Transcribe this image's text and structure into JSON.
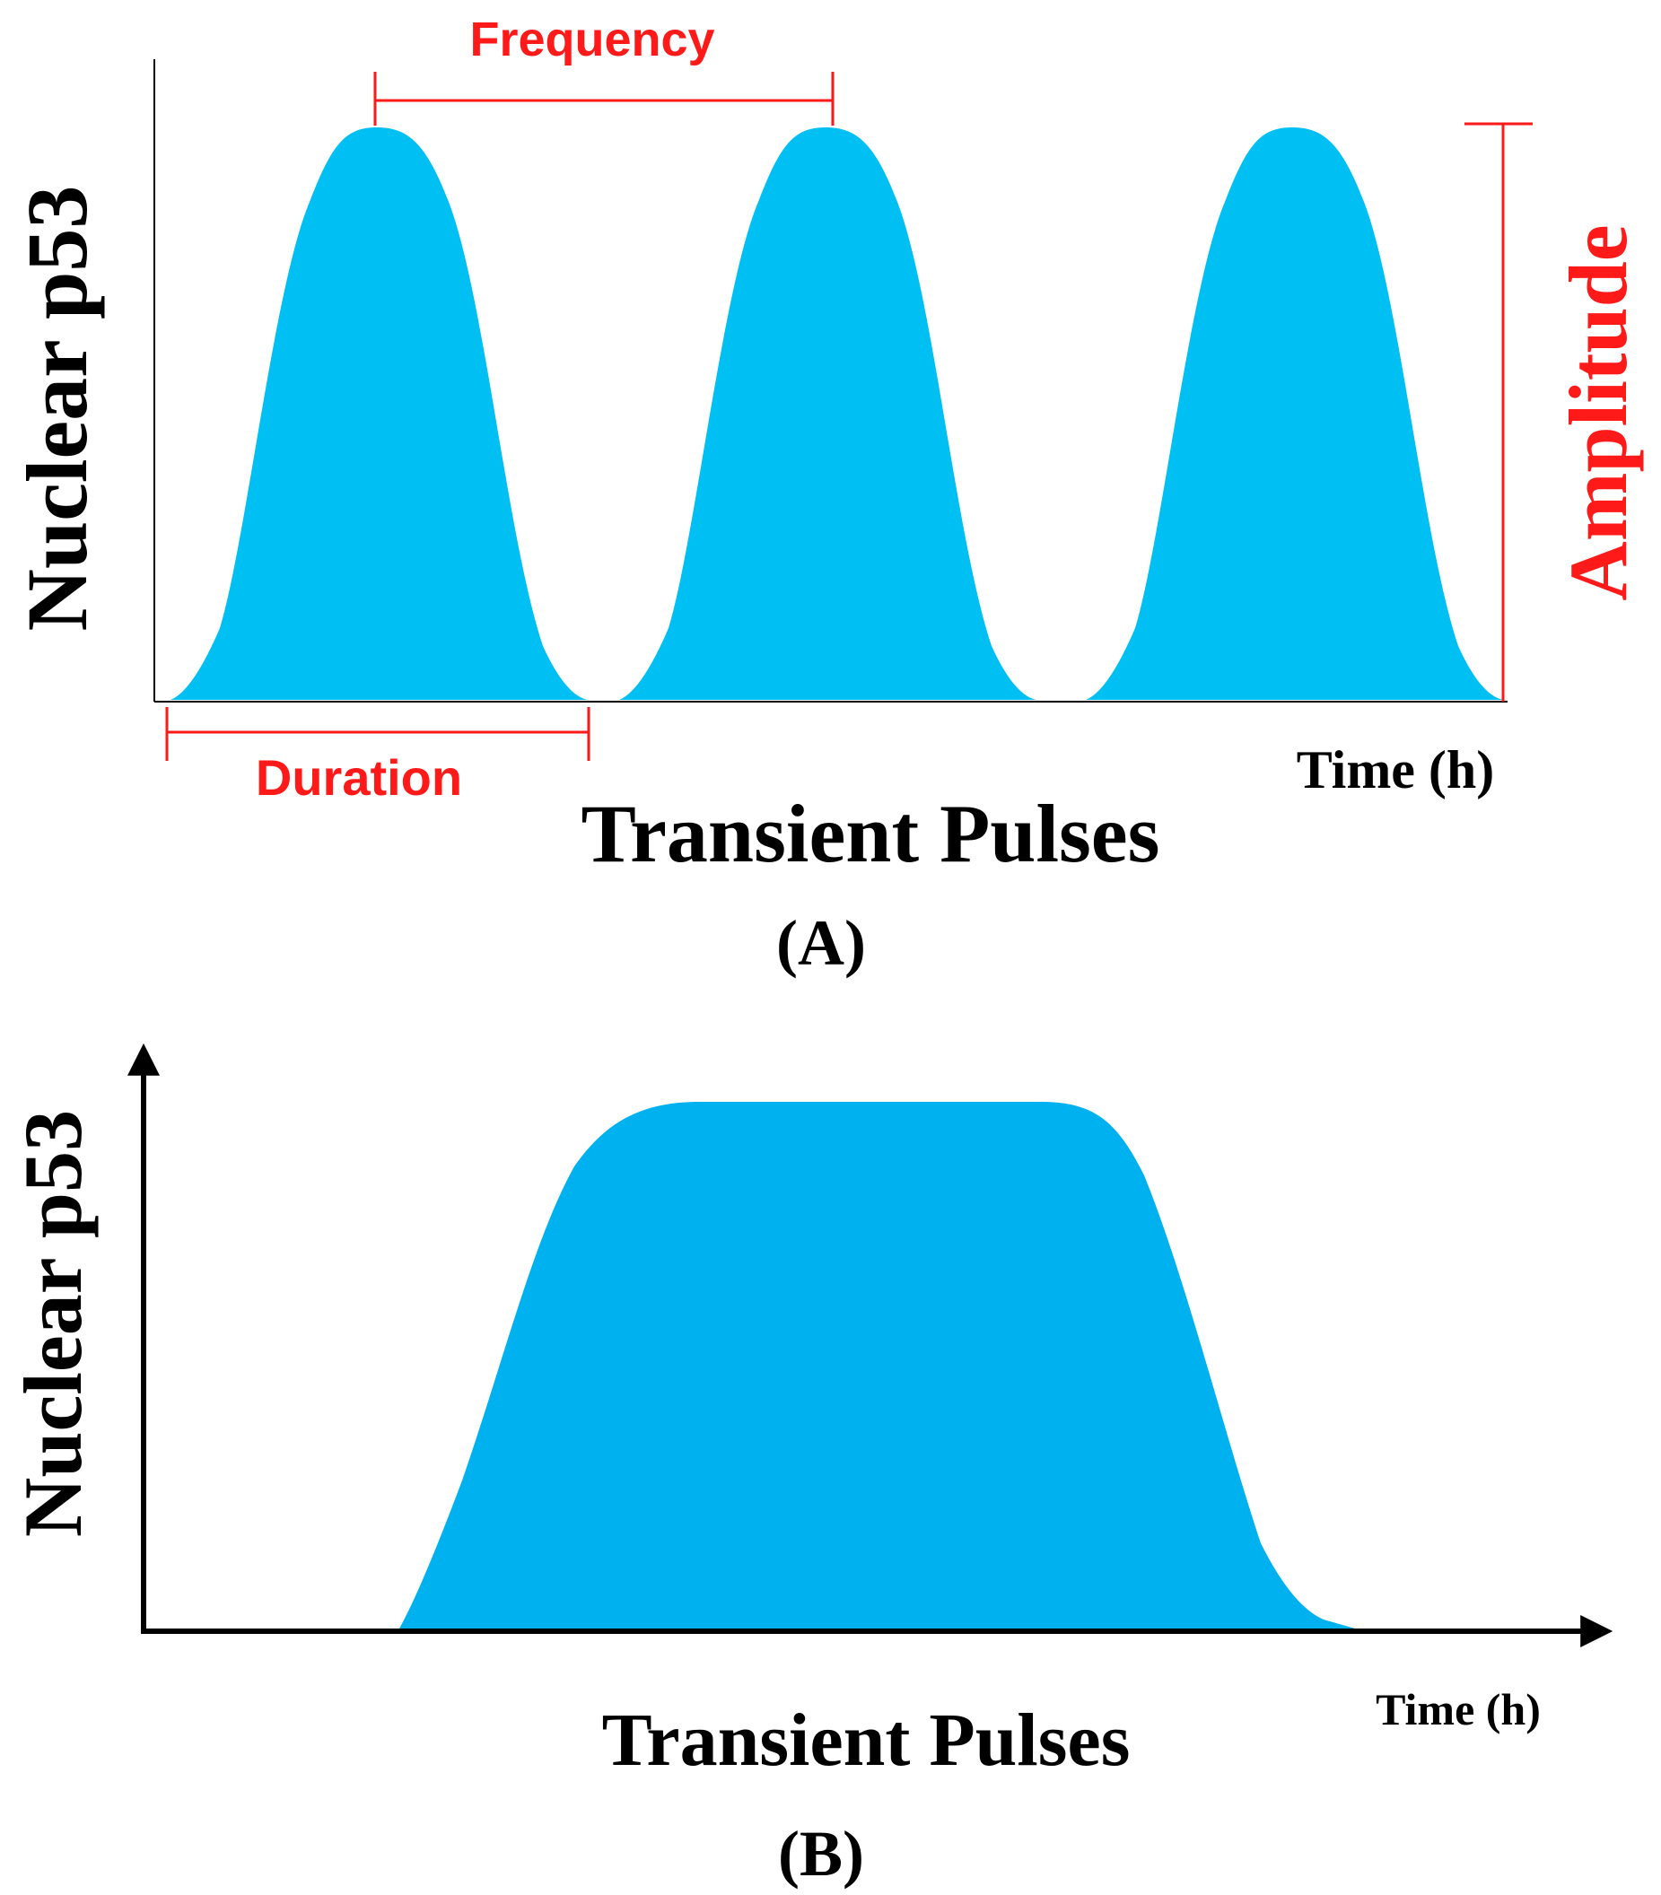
{
  "colors": {
    "pulse_fill_a": "#00BFF3",
    "pulse_fill_b": "#00B1EF",
    "annotation": "#FF1A1A",
    "axis": "#000000",
    "text": "#000000"
  },
  "panel_a": {
    "ylabel": "Nuclear p53",
    "xlabel": "Time (h)",
    "title": "Transient Pulses",
    "caption": "(A)",
    "annotations": {
      "frequency": "Frequency",
      "duration": "Duration",
      "amplitude": "Amplitude"
    }
  },
  "panel_b": {
    "ylabel": "Nuclear p53",
    "xlabel": "Time (h)",
    "title": "Transient Pulses",
    "caption": "(B)"
  }
}
